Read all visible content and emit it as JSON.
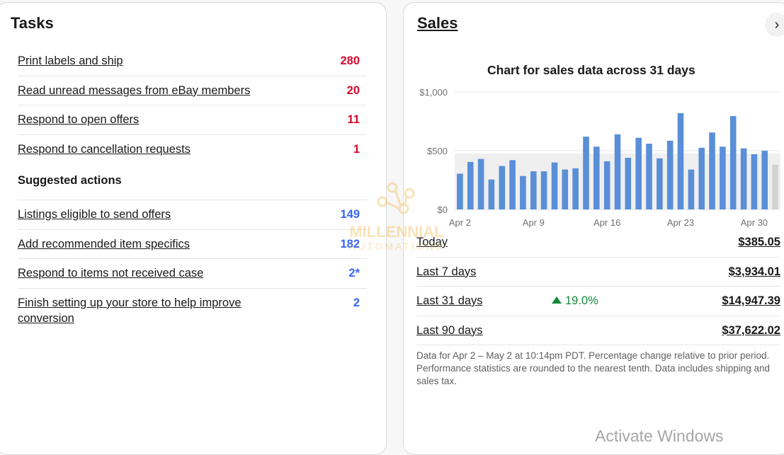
{
  "tasks": {
    "title": "Tasks",
    "items": [
      {
        "label": "Print labels and ship",
        "count": "280"
      },
      {
        "label": "Read unread messages from eBay members",
        "count": "20"
      },
      {
        "label": "Respond to open offers",
        "count": "11"
      },
      {
        "label": "Respond to cancellation requests",
        "count": "1"
      }
    ],
    "suggested_title": "Suggested actions",
    "suggested": [
      {
        "label": "Listings eligible to send offers",
        "count": "149"
      },
      {
        "label": "Add recommended item specifics",
        "count": "182"
      },
      {
        "label": "Respond to items not received case",
        "count": "2*"
      },
      {
        "label": "Finish setting up your store to help improve conversion",
        "count": "2"
      }
    ]
  },
  "sales": {
    "title": "Sales",
    "next_icon": "chevron-right-icon",
    "stats": [
      {
        "label": "Today",
        "value": "$385.05"
      },
      {
        "label": "Last 7 days",
        "value": "$3,934.01"
      },
      {
        "label": "Last 31 days",
        "value": "$14,947.39",
        "change": "19.0%"
      },
      {
        "label": "Last 90 days",
        "value": "$37,622.02"
      }
    ],
    "footnote": "Data for Apr 2 – May 2 at 10:14pm PDT. Percentage change relative to prior period. Performance statistics are rounded to the nearest tenth. Data includes shipping and sales tax."
  },
  "chart_data": {
    "type": "bar",
    "title": "Chart for sales data across 31 days",
    "y_ticks": [
      "$1,000",
      "$500",
      "$0"
    ],
    "x_ticks": [
      "Apr 2",
      "Apr 9",
      "Apr 16",
      "Apr 23",
      "Apr 30"
    ],
    "ylim": [
      0,
      1000
    ],
    "values": [
      305,
      405,
      430,
      255,
      370,
      420,
      285,
      325,
      325,
      400,
      340,
      350,
      620,
      535,
      410,
      640,
      440,
      610,
      560,
      435,
      585,
      820,
      340,
      525,
      655,
      535,
      795,
      520,
      470,
      500,
      380
    ],
    "highlight_last": true,
    "bar_color": "#5a8fd8",
    "last_bar_color": "#d3d3d3",
    "band_color": "#efefef"
  },
  "watermark": {
    "line1": "MILLENNIAL",
    "line2": "AUTOMATIONS"
  },
  "os_overlay": "Activate Windows"
}
